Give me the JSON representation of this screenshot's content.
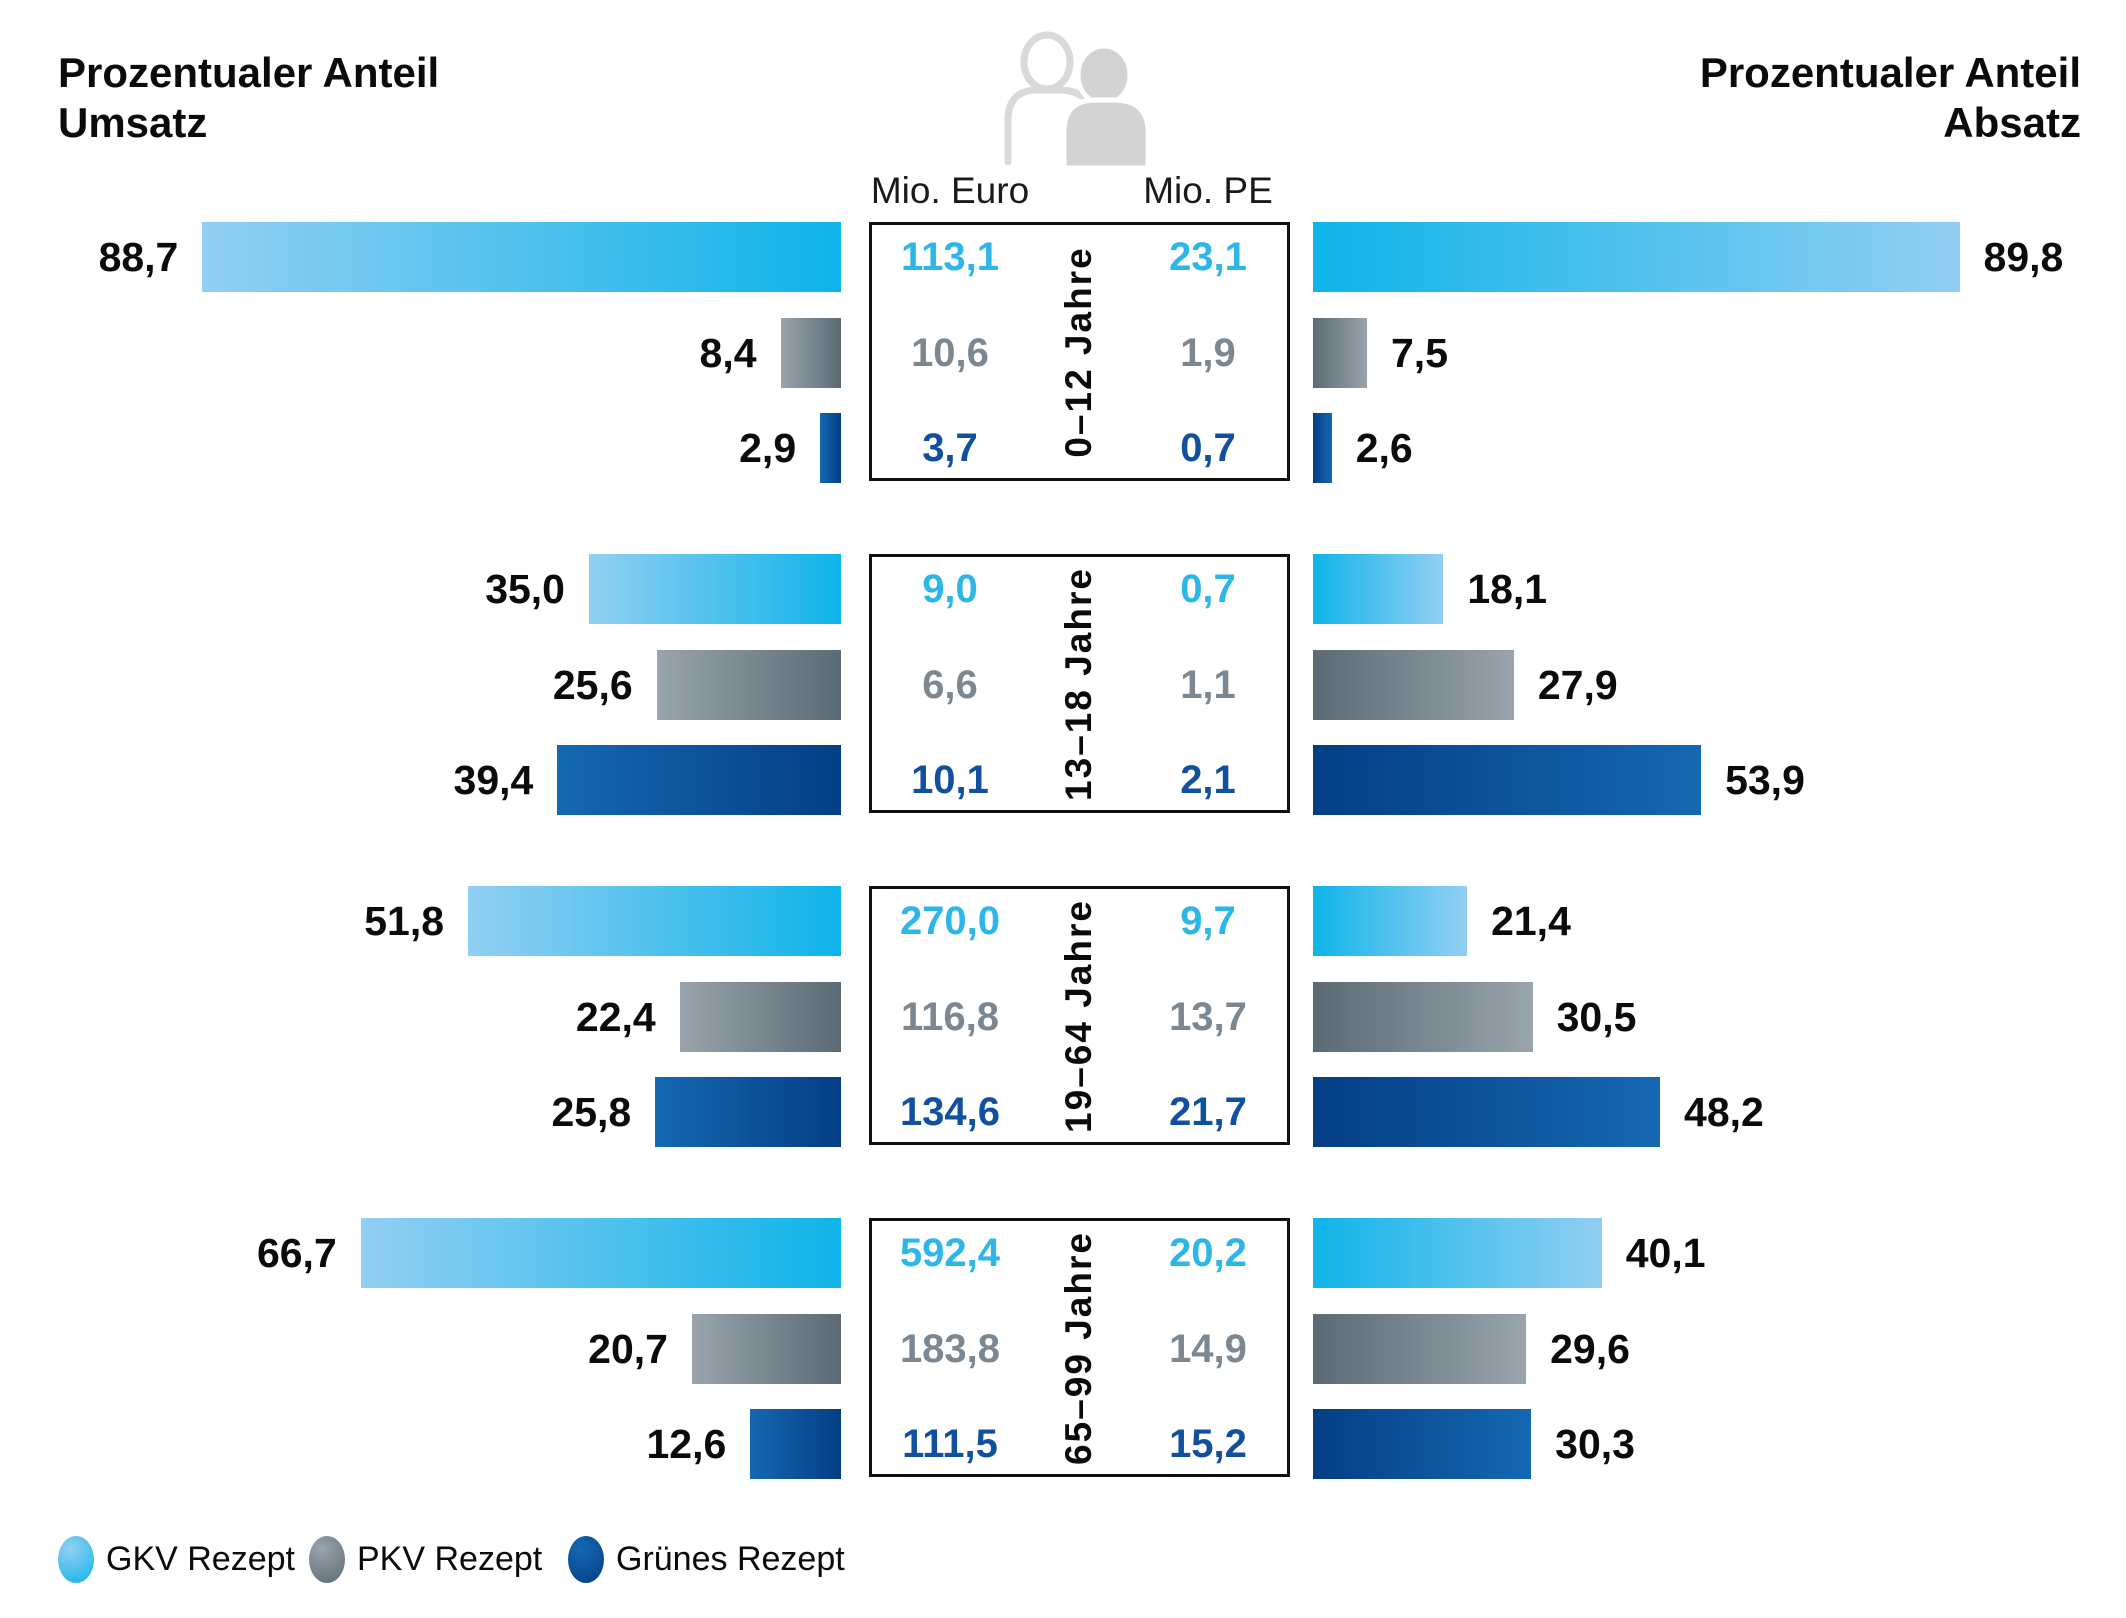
{
  "titles": {
    "left": [
      "Prozentualer Anteil",
      "Umsatz"
    ],
    "right": [
      "Prozentualer Anteil",
      "Absatz"
    ]
  },
  "column_headers": {
    "euro": "Mio. Euro",
    "pe": "Mio. PE"
  },
  "icon": "two-people-icon",
  "legend": [
    {
      "label": "GKV Rezept",
      "color": "gkv"
    },
    {
      "label": "PKV Rezept",
      "color": "pkv"
    },
    {
      "label": "Grünes Rezept",
      "color": "gruenes"
    }
  ],
  "colors": {
    "gkv": {
      "light": "#92CFF2",
      "dark": "#0FB4E9",
      "text": "#2EB6E8"
    },
    "pkv": {
      "light": "#99A4AC",
      "dark": "#5B6A74",
      "text": "#7B8791"
    },
    "gruenes": {
      "light": "#1468B1",
      "dark": "#053E85",
      "text": "#10509E"
    }
  },
  "chart_data": {
    "type": "bar",
    "orientation": "horizontal-butterfly",
    "left_axis": "Prozentualer Anteil Umsatz (%)",
    "right_axis": "Prozentualer Anteil Absatz (%)",
    "center_columns": [
      "Mio. Euro",
      "Mio. PE"
    ],
    "series_names": [
      "GKV Rezept",
      "PKV Rezept",
      "Grünes Rezept"
    ],
    "groups": [
      {
        "age_label": "0–12 Jahre",
        "rows": [
          {
            "series": "GKV Rezept",
            "umsatz_pct": "88,7",
            "mio_euro": "113,1",
            "mio_pe": "23,1",
            "absatz_pct": "89,8"
          },
          {
            "series": "PKV Rezept",
            "umsatz_pct": "8,4",
            "mio_euro": "10,6",
            "mio_pe": "1,9",
            "absatz_pct": "7,5"
          },
          {
            "series": "Grünes Rezept",
            "umsatz_pct": "2,9",
            "mio_euro": "3,7",
            "mio_pe": "0,7",
            "absatz_pct": "2,6"
          }
        ]
      },
      {
        "age_label": "13–18 Jahre",
        "rows": [
          {
            "series": "GKV Rezept",
            "umsatz_pct": "35,0",
            "mio_euro": "9,0",
            "mio_pe": "0,7",
            "absatz_pct": "18,1"
          },
          {
            "series": "PKV Rezept",
            "umsatz_pct": "25,6",
            "mio_euro": "6,6",
            "mio_pe": "1,1",
            "absatz_pct": "27,9"
          },
          {
            "series": "Grünes Rezept",
            "umsatz_pct": "39,4",
            "mio_euro": "10,1",
            "mio_pe": "2,1",
            "absatz_pct": "53,9"
          }
        ]
      },
      {
        "age_label": "19–64 Jahre",
        "rows": [
          {
            "series": "GKV Rezept",
            "umsatz_pct": "51,8",
            "mio_euro": "270,0",
            "mio_pe": "9,7",
            "absatz_pct": "21,4"
          },
          {
            "series": "PKV Rezept",
            "umsatz_pct": "22,4",
            "mio_euro": "116,8",
            "mio_pe": "13,7",
            "absatz_pct": "30,5"
          },
          {
            "series": "Grünes Rezept",
            "umsatz_pct": "25,8",
            "mio_euro": "134,6",
            "mio_pe": "21,7",
            "absatz_pct": "48,2"
          }
        ]
      },
      {
        "age_label": "65–99 Jahre",
        "rows": [
          {
            "series": "GKV Rezept",
            "umsatz_pct": "66,7",
            "mio_euro": "592,4",
            "mio_pe": "20,2",
            "absatz_pct": "40,1"
          },
          {
            "series": "PKV Rezept",
            "umsatz_pct": "20,7",
            "mio_euro": "183,8",
            "mio_pe": "14,9",
            "absatz_pct": "29,6"
          },
          {
            "series": "Grünes Rezept",
            "umsatz_pct": "12,6",
            "mio_euro": "111,5",
            "mio_pe": "15,2",
            "absatz_pct": "30,3"
          }
        ]
      }
    ]
  }
}
